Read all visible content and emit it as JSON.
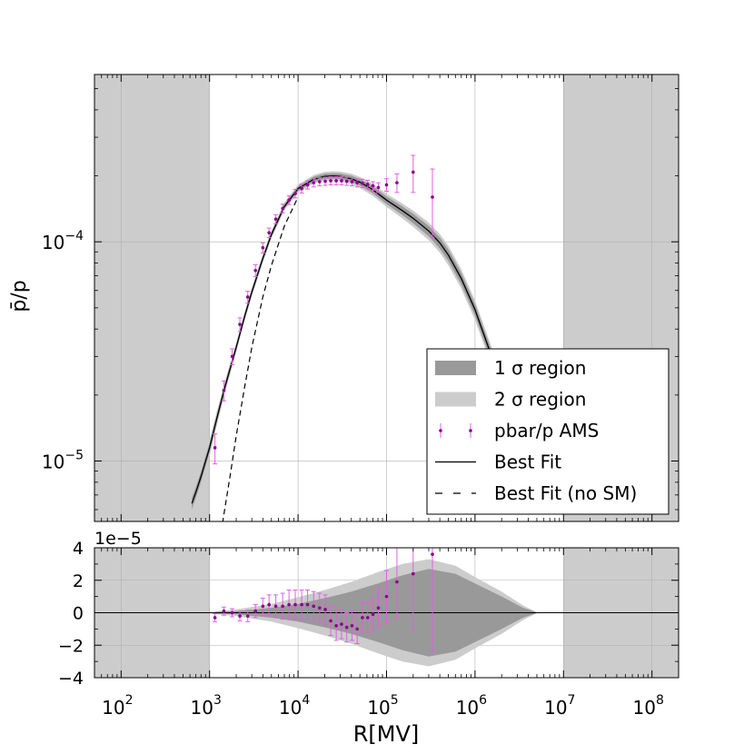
{
  "chart_data": [
    {
      "type": "line",
      "panel": "main",
      "xlabel": "R[MV]",
      "ylabel": "p̄/p",
      "x_scale": "log",
      "y_scale": "log",
      "xlim": [
        50,
        200000000
      ],
      "ylim": [
        5.3e-06,
        0.00058
      ],
      "grid": true,
      "x_ticks": [
        {
          "value": 100,
          "base": "10",
          "exp": "2"
        },
        {
          "value": 1000,
          "base": "10",
          "exp": "3"
        },
        {
          "value": 10000,
          "base": "10",
          "exp": "4"
        },
        {
          "value": 100000,
          "base": "10",
          "exp": "5"
        },
        {
          "value": 1000000,
          "base": "10",
          "exp": "6"
        },
        {
          "value": 10000000,
          "base": "10",
          "exp": "7"
        },
        {
          "value": 100000000,
          "base": "10",
          "exp": "8"
        }
      ],
      "y_ticks": [
        {
          "value": 1e-05,
          "base": "10",
          "exp": "−5"
        },
        {
          "value": 0.0001,
          "base": "10",
          "exp": "−4"
        }
      ],
      "excluded_regions": [
        [
          50,
          1000
        ],
        [
          10000000,
          200000000
        ]
      ],
      "legend": {
        "placement": "lower-right",
        "entries": [
          {
            "label": "1 σ region",
            "kind": "band1",
            "color": "#999999"
          },
          {
            "label": "2 σ region",
            "kind": "band2",
            "color": "#cccccc"
          },
          {
            "label": "pbar/p AMS",
            "kind": "errorbar",
            "color": "#8b008b",
            "errcolor": "#e060e0"
          },
          {
            "label": "Best Fit",
            "kind": "solid",
            "color": "#000000"
          },
          {
            "label": "Best Fit (no SM)",
            "kind": "dashed",
            "color": "#000000"
          }
        ]
      },
      "best_fit": {
        "x": [
          630,
          700,
          800,
          1000,
          1200,
          1500,
          2000,
          2500,
          3000,
          4000,
          5000,
          7000,
          10000,
          15000,
          20000,
          25000,
          30000,
          40000,
          50000,
          70000,
          100000,
          150000,
          200000,
          300000,
          400000,
          500000,
          700000,
          1000000,
          1500000,
          2000000,
          3000000,
          4000000
        ],
        "y": [
          6.4e-06,
          7.2e-06,
          8.5e-06,
          1.15e-05,
          1.55e-05,
          2.2e-05,
          3.3e-05,
          4.6e-05,
          5.9e-05,
          8.4e-05,
          0.000108,
          0.000145,
          0.000175,
          0.000193,
          0.000199,
          0.0002,
          0.000199,
          0.000194,
          0.000187,
          0.000173,
          0.000155,
          0.000139,
          0.000128,
          0.000112,
          9.9e-05,
          8.7e-05,
          6.8e-05,
          4.9e-05,
          3.1e-05,
          2.1e-05,
          1.05e-05,
          6.2e-06
        ]
      },
      "band_1sigma_rel": {
        "x": [
          630,
          1000,
          2000,
          5000,
          10000,
          30000,
          100000,
          200000,
          500000,
          1000000,
          2000000,
          4000000
        ],
        "rel": [
          0.06,
          0.05,
          0.03,
          0.025,
          0.025,
          0.03,
          0.04,
          0.05,
          0.06,
          0.06,
          0.06,
          0.06
        ]
      },
      "best_fit_no_sm": {
        "x": [
          1400,
          1700,
          2000,
          2500,
          3000,
          4000,
          5000,
          7000,
          10000
        ],
        "y": [
          5.2e-06,
          8.5e-06,
          1.3e-05,
          2.2e-05,
          3.3e-05,
          5.6e-05,
          7.8e-05,
          0.000118,
          0.00016
        ]
      },
      "ams_points": {
        "x": [
          1150,
          1450,
          1800,
          2200,
          2700,
          3300,
          4000,
          4700,
          5600,
          6700,
          7900,
          9300,
          11000,
          12800,
          15000,
          17500,
          20300,
          23400,
          27000,
          31000,
          35500,
          40700,
          46600,
          53400,
          61200,
          70200,
          80800,
          100000,
          131000,
          200000,
          330000
        ],
        "y": [
          1.15e-05,
          2.1e-05,
          3e-05,
          4.2e-05,
          5.6e-05,
          7.4e-05,
          9.4e-05,
          0.00011,
          0.000127,
          0.000142,
          0.000155,
          0.000166,
          0.000175,
          0.000182,
          0.000186,
          0.000188,
          0.000189,
          0.00019,
          0.00019,
          0.00019,
          0.000189,
          0.000188,
          0.000186,
          0.000185,
          0.000183,
          0.00018,
          0.000177,
          0.000182,
          0.000186,
          0.000208,
          0.00016
        ],
        "err": [
          1.8e-06,
          2.2e-06,
          2.5e-06,
          3e-06,
          3.5e-06,
          4.5e-06,
          5e-06,
          5.5e-06,
          6e-06,
          6.5e-06,
          7e-06,
          7.5e-06,
          8e-06,
          8e-06,
          8e-06,
          8e-06,
          8e-06,
          8e-06,
          8e-06,
          8e-06,
          8e-06,
          8e-06,
          8e-06,
          8e-06,
          8e-06,
          8e-06,
          9e-06,
          1.2e-05,
          1.8e-05,
          4e-05,
          5.5e-05
        ]
      }
    },
    {
      "type": "line",
      "panel": "residual",
      "x_scale": "log",
      "xlim": [
        50,
        200000000
      ],
      "ylim": [
        -4,
        4
      ],
      "y_scale_label": "1e−5",
      "y_ticks": [
        {
          "value": 4,
          "label": "4"
        },
        {
          "value": 2,
          "label": "2"
        },
        {
          "value": 0,
          "label": "0"
        },
        {
          "value": -2,
          "label": "−2"
        },
        {
          "value": -4,
          "label": "−4"
        }
      ],
      "excluded_regions": [
        [
          50,
          1000
        ],
        [
          10000000,
          200000000
        ]
      ],
      "band_1sigma": {
        "x": [
          1150,
          2000,
          5000,
          10000,
          20000,
          40000,
          80000,
          150000,
          300000,
          600000,
          1000000,
          2000000,
          3500000,
          5000000
        ],
        "half": [
          0.05,
          0.1,
          0.3,
          0.55,
          0.9,
          1.3,
          1.8,
          2.3,
          2.7,
          2.4,
          1.8,
          1.0,
          0.3,
          0.02
        ]
      },
      "band_2sigma": {
        "x": [
          1150,
          2000,
          5000,
          10000,
          20000,
          40000,
          80000,
          150000,
          300000,
          600000,
          1000000,
          2000000,
          3500000,
          5000000
        ],
        "half": [
          0.1,
          0.2,
          0.55,
          0.95,
          1.4,
          1.9,
          2.5,
          3.0,
          3.3,
          2.9,
          2.2,
          1.3,
          0.45,
          0.03
        ]
      },
      "ams_points": {
        "x": [
          1150,
          1450,
          1800,
          2200,
          2700,
          3300,
          4000,
          4700,
          5600,
          6700,
          7900,
          9300,
          11000,
          12800,
          15000,
          17500,
          20300,
          23400,
          27000,
          31000,
          35500,
          40700,
          46600,
          53400,
          61200,
          70200,
          80800,
          100000,
          131000,
          200000,
          330000
        ],
        "y": [
          -0.3,
          0.1,
          0.0,
          -0.2,
          -0.2,
          0.1,
          0.4,
          0.5,
          0.4,
          0.4,
          0.5,
          0.5,
          0.5,
          0.5,
          0.4,
          0.3,
          0.2,
          -0.5,
          -0.8,
          -0.7,
          -0.9,
          -0.8,
          -1.0,
          -0.3,
          -0.3,
          -0.1,
          0.3,
          1.0,
          1.9,
          2.4,
          3.6
        ],
        "err": [
          0.25,
          0.25,
          0.25,
          0.3,
          0.35,
          0.4,
          0.5,
          0.6,
          0.7,
          0.8,
          0.9,
          0.9,
          0.9,
          0.9,
          0.9,
          0.9,
          0.9,
          0.9,
          0.9,
          0.9,
          0.9,
          0.9,
          0.9,
          0.9,
          0.9,
          1.0,
          1.2,
          1.6,
          2.2,
          3.5,
          6.0
        ]
      }
    }
  ]
}
